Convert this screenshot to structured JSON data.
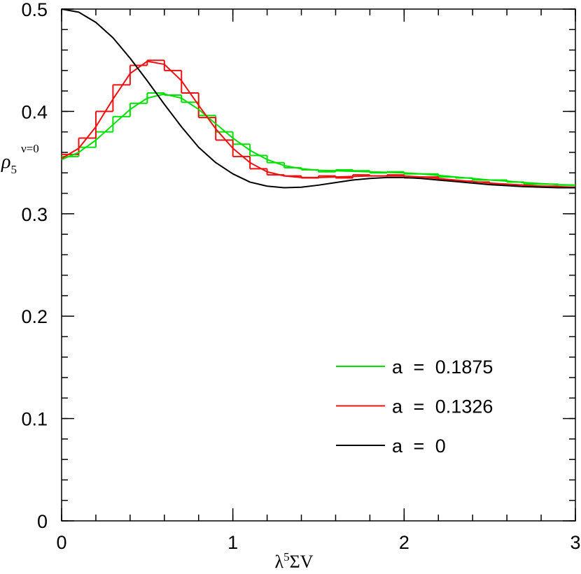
{
  "chart_data": {
    "type": "line",
    "xlabel": {
      "base": "λ",
      "sup": "5",
      "rest": "ΣV"
    },
    "ylabel": {
      "base": "ρ",
      "sub": "5",
      "sup": "ν=0"
    },
    "xlim": [
      0,
      3
    ],
    "ylim": [
      0,
      0.5
    ],
    "xticks": [
      0,
      1,
      2,
      3
    ],
    "yticks": [
      0,
      0.1,
      0.2,
      0.3,
      0.4,
      0.5
    ],
    "xminor": [
      0,
      0.2,
      0.4,
      0.6,
      0.8,
      1,
      1.2,
      1.4,
      1.6,
      1.8,
      2,
      2.2,
      2.4,
      2.6,
      2.8,
      3
    ],
    "yminor": [
      0,
      0.02,
      0.04,
      0.06,
      0.08,
      0.1,
      0.12,
      0.14,
      0.16,
      0.18,
      0.2,
      0.22,
      0.24,
      0.26,
      0.28,
      0.3,
      0.32,
      0.34,
      0.36,
      0.38,
      0.4,
      0.42,
      0.44,
      0.46,
      0.48,
      0.5
    ],
    "x": [
      0,
      0.1,
      0.2,
      0.3,
      0.4,
      0.5,
      0.6,
      0.7,
      0.8,
      0.9,
      1,
      1.1,
      1.2,
      1.3,
      1.4,
      1.5,
      1.6,
      1.7,
      1.8,
      1.9,
      2,
      2.1,
      2.2,
      2.3,
      2.4,
      2.5,
      2.6,
      2.7,
      2.8,
      2.9,
      3
    ],
    "series": [
      {
        "name": "a = 0.1875",
        "color": "#00e000",
        "values": [
          0.353,
          0.36,
          0.372,
          0.387,
          0.402,
          0.413,
          0.417,
          0.413,
          0.402,
          0.388,
          0.374,
          0.362,
          0.353,
          0.347,
          0.344,
          0.3425,
          0.342,
          0.3415,
          0.341,
          0.3405,
          0.34,
          0.339,
          0.3375,
          0.336,
          0.3345,
          0.333,
          0.332,
          0.3305,
          0.3295,
          0.3285,
          0.328
        ]
      },
      {
        "name": "a = 0.1326",
        "color": "#ee1111",
        "values": [
          0.354,
          0.364,
          0.385,
          0.412,
          0.437,
          0.449,
          0.446,
          0.43,
          0.406,
          0.383,
          0.364,
          0.35,
          0.341,
          0.337,
          0.3355,
          0.3355,
          0.336,
          0.3365,
          0.337,
          0.337,
          0.337,
          0.336,
          0.3345,
          0.333,
          0.3315,
          0.33,
          0.329,
          0.328,
          0.327,
          0.3265,
          0.326
        ]
      },
      {
        "name": "a = 0",
        "color": "#000000",
        "values": [
          0.5,
          0.497,
          0.487,
          0.472,
          0.452,
          0.43,
          0.407,
          0.385,
          0.365,
          0.35,
          0.339,
          0.331,
          0.327,
          0.3255,
          0.326,
          0.328,
          0.3305,
          0.333,
          0.3345,
          0.3355,
          0.3355,
          0.3345,
          0.333,
          0.3315,
          0.33,
          0.3285,
          0.3275,
          0.3265,
          0.326,
          0.3255,
          0.3255
        ]
      }
    ],
    "bins": [
      0,
      0.1,
      0.2,
      0.3,
      0.4,
      0.5,
      0.6,
      0.7,
      0.8,
      0.9,
      1,
      1.1,
      1.2,
      1.3,
      1.4,
      1.5,
      1.6,
      1.7,
      1.8,
      1.9,
      2,
      2.1,
      2.2,
      2.3,
      2.4,
      2.5,
      2.6,
      2.7,
      2.8,
      2.9,
      3
    ],
    "histograms": [
      {
        "color": "#00e000",
        "values": [
          0.356,
          0.365,
          0.38,
          0.395,
          0.408,
          0.418,
          0.416,
          0.409,
          0.396,
          0.38,
          0.368,
          0.357,
          0.35,
          0.345,
          0.343,
          0.341,
          0.343,
          0.342,
          0.34,
          0.341,
          0.339,
          0.339,
          0.336,
          0.335,
          0.333,
          0.333,
          0.331,
          0.329,
          0.329,
          0.328
        ]
      },
      {
        "color": "#ee1111",
        "values": [
          0.358,
          0.374,
          0.4,
          0.426,
          0.445,
          0.45,
          0.44,
          0.418,
          0.394,
          0.372,
          0.356,
          0.344,
          0.338,
          0.337,
          0.335,
          0.337,
          0.335,
          0.338,
          0.337,
          0.338,
          0.335,
          0.336,
          0.333,
          0.332,
          0.331,
          0.329,
          0.328,
          0.327,
          0.327,
          0.326
        ]
      }
    ]
  }
}
